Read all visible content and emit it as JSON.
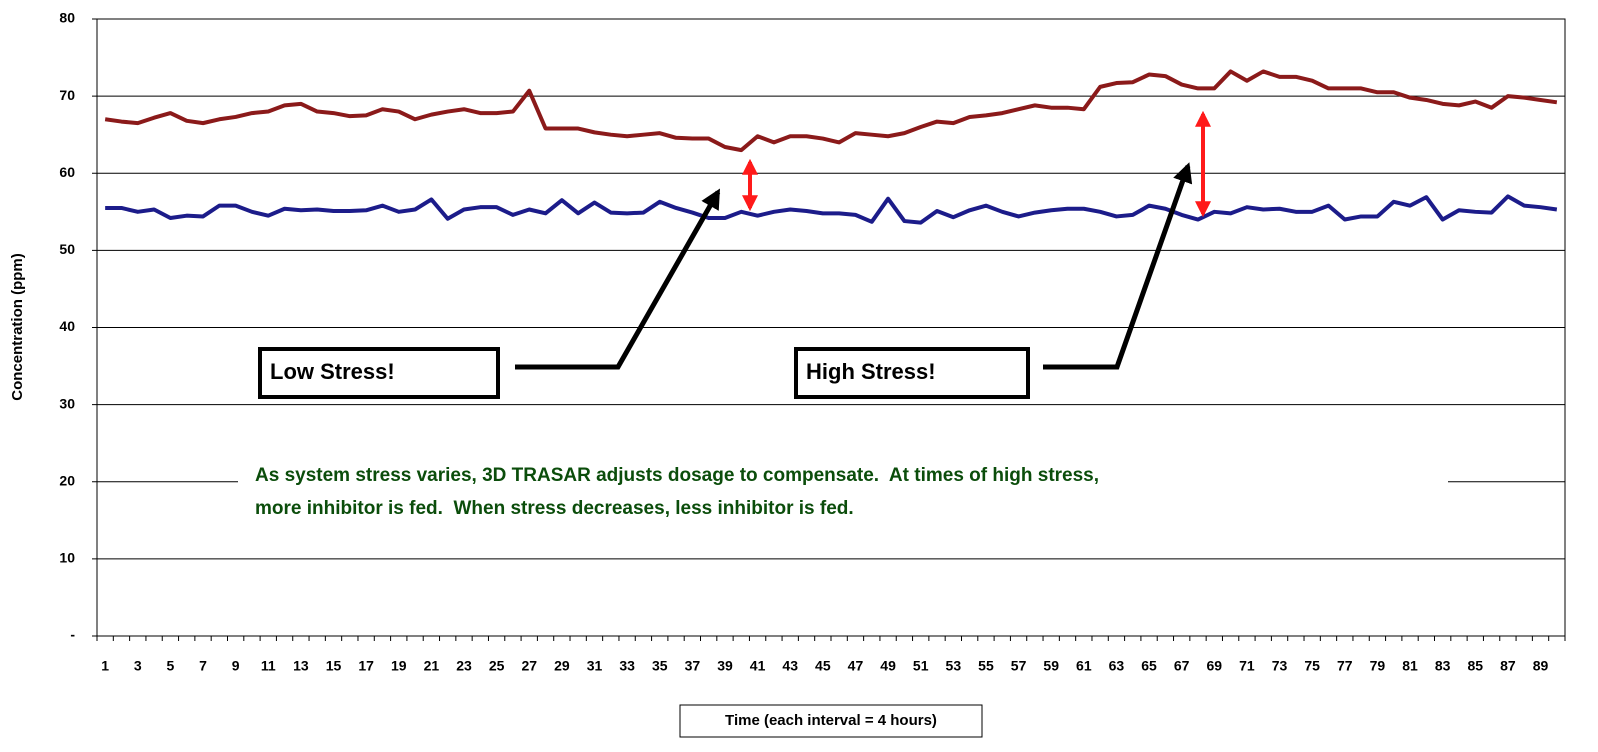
{
  "chart_data": {
    "type": "line",
    "xlabel": "Time (each interval = 4 hours)",
    "ylabel": "Concentration (ppm)",
    "categories": [
      1,
      null,
      3,
      null,
      5,
      null,
      7,
      null,
      9,
      null,
      11,
      null,
      13,
      null,
      15,
      null,
      17,
      null,
      19,
      null,
      21,
      null,
      23,
      null,
      25,
      null,
      27,
      null,
      29,
      null,
      31,
      null,
      33,
      null,
      35,
      null,
      37,
      null,
      39,
      null,
      41,
      null,
      43,
      null,
      45,
      null,
      47,
      null,
      49,
      null,
      51,
      null,
      53,
      null,
      55,
      null,
      57,
      null,
      59,
      null,
      61,
      null,
      63,
      null,
      65,
      null,
      67,
      null,
      69,
      null,
      71,
      null,
      73,
      null,
      75,
      null,
      77,
      null,
      79,
      null,
      81,
      null,
      83,
      null,
      85,
      null,
      87,
      null,
      89,
      null
    ],
    "series": [
      {
        "color": "#8b1a1a",
        "values": [
          67,
          66.7,
          66.5,
          67.2,
          67.8,
          66.8,
          66.5,
          67,
          67.3,
          67.8,
          68,
          68.8,
          69,
          68,
          67.8,
          67.4,
          67.5,
          68.3,
          68,
          67,
          67.6,
          68,
          68.3,
          67.8,
          67.8,
          68,
          70.7,
          65.8,
          65.8,
          65.8,
          65.3,
          65,
          64.8,
          65,
          65.2,
          64.6,
          64.5,
          64.5,
          63.4,
          63,
          64.8,
          64,
          64.8,
          64.8,
          64.5,
          64,
          65.2,
          65,
          64.8,
          65.2,
          66,
          66.7,
          66.5,
          67.3,
          67.5,
          67.8,
          68.3,
          68.8,
          68.5,
          68.5,
          68.3,
          71.2,
          71.7,
          71.8,
          72.8,
          72.6,
          71.5,
          71,
          71,
          73.2,
          72,
          73.2,
          72.5,
          72.5,
          72,
          71,
          71,
          71,
          70.5,
          70.5,
          69.8,
          69.5,
          69,
          68.8,
          69.3,
          68.5,
          70,
          69.8,
          69.5,
          69.2
        ]
      },
      {
        "color": "#1c1c8a",
        "values": [
          55.5,
          55.5,
          55,
          55.3,
          54.2,
          54.5,
          54.4,
          55.8,
          55.8,
          55,
          54.5,
          55.4,
          55.2,
          55.3,
          55.1,
          55.1,
          55.2,
          55.8,
          55,
          55.3,
          56.6,
          54.1,
          55.3,
          55.6,
          55.6,
          54.6,
          55.3,
          54.8,
          56.5,
          54.8,
          56.2,
          54.9,
          54.8,
          54.9,
          56.3,
          55.5,
          54.9,
          54.2,
          54.2,
          55,
          54.5,
          55,
          55.3,
          55.1,
          54.8,
          54.8,
          54.6,
          53.7,
          56.7,
          53.8,
          53.6,
          55.1,
          54.3,
          55.2,
          55.8,
          55,
          54.4,
          54.9,
          55.2,
          55.4,
          55.4,
          55,
          54.4,
          54.6,
          55.8,
          55.4,
          54.6,
          54,
          55,
          54.8,
          55.6,
          55.3,
          55.4,
          55,
          55,
          55.8,
          54,
          54.4,
          54.4,
          56.3,
          55.8,
          56.9,
          54,
          55.2,
          55,
          54.9,
          57,
          55.8,
          55.6,
          55.3
        ]
      }
    ],
    "ylim": [
      0,
      80
    ],
    "yticks": [
      {
        "value": 0,
        "label": "-"
      },
      10,
      20,
      30,
      40,
      50,
      60,
      70,
      80
    ],
    "grid": true,
    "annotations": [
      "Low Stress!",
      "High Stress!",
      "As system stress varies, 3D TRASAR adjusts dosage to compensate.  At times of high stress,",
      "more inhibitor is fed.  When stress decreases, less inhibitor is fed."
    ]
  }
}
